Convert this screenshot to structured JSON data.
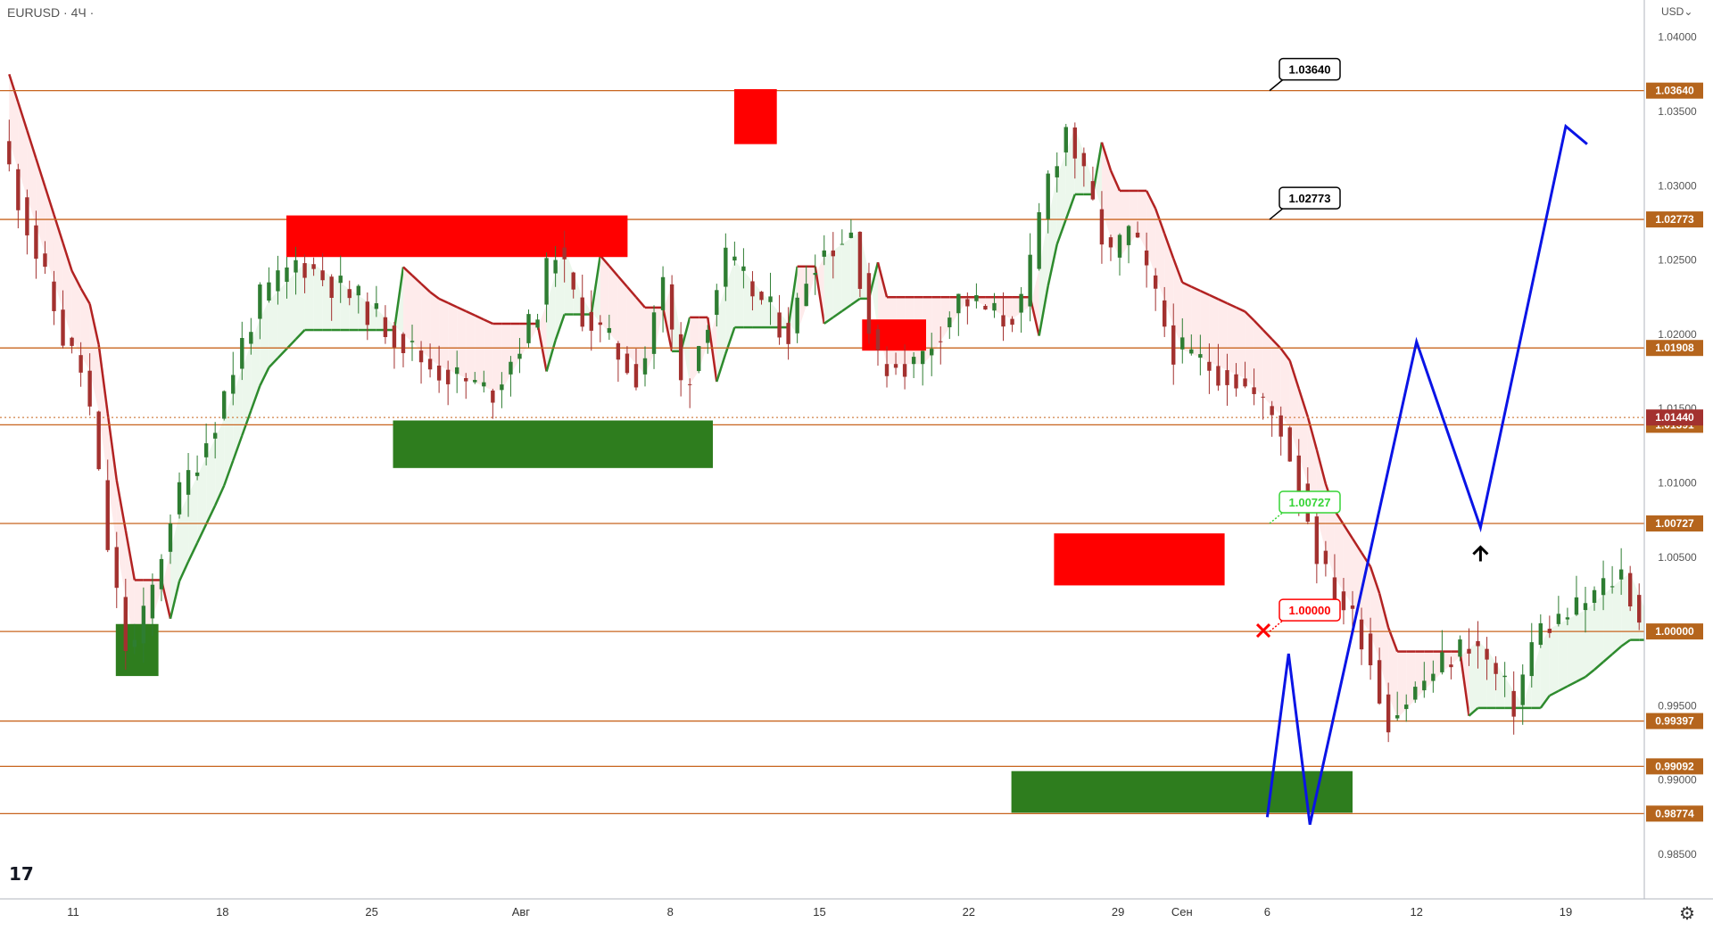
{
  "header": {
    "symbol": "EURUSD",
    "interval": "4Ч",
    "currency": "USD"
  },
  "colors": {
    "level_line": "#c8641e",
    "supply_zone": "#ff0000",
    "demand_zone": "#2e7d1e",
    "bull_candle": "#2e7d32",
    "bear_candle": "#a3312f",
    "trend_down": "#b22222",
    "trend_up": "#2e8b2e",
    "projection": "#0a14e6"
  },
  "chart_data": {
    "type": "candlestick",
    "symbol": "EURUSD",
    "timeframe": "4Ч",
    "ylim": [
      0.982,
      1.0425
    ],
    "x_ticks": [
      "11",
      "18",
      "25",
      "Авг",
      "8",
      "15",
      "22",
      "29",
      "Сен",
      "6",
      "12",
      "19"
    ],
    "y_ticks": [
      1.04,
      1.035,
      1.03,
      1.025,
      1.02,
      1.015,
      1.01,
      1.005,
      1.0,
      0.995,
      0.99,
      0.985
    ],
    "y_tick_labels": [
      "1.04000",
      "1.03500",
      "1.03000",
      "1.02500",
      "1.02000",
      "1.01500",
      "1.01000",
      "1.00500",
      "1.00000",
      "0.99500",
      "0.99000",
      "0.98500"
    ],
    "levels": [
      1.0364,
      1.02773,
      1.01908,
      1.01391,
      1.00727,
      1.0,
      0.99397,
      0.99092,
      0.98774
    ],
    "level_labels": [
      "1.03640",
      "1.02773",
      "1.01908",
      "1.01391",
      "1.00727",
      "1.00000",
      "0.99397",
      "0.99092",
      "0.98774"
    ],
    "last_price": 1.0144,
    "last_price_label": "1.01440",
    "targets": [
      {
        "label": "1.03640",
        "value": 1.0364,
        "style": "black"
      },
      {
        "label": "1.02773",
        "value": 1.02773,
        "style": "black"
      },
      {
        "label": "1.00727",
        "value": 1.00727,
        "style": "green"
      },
      {
        "label": "1.00000",
        "value": 1.0,
        "style": "red"
      }
    ],
    "projection_path": [
      {
        "date": "2022-09-05",
        "price": 0.9875
      },
      {
        "date": "2022-09-06",
        "price": 0.9985
      },
      {
        "date": "2022-09-07",
        "price": 0.987
      },
      {
        "date": "2022-09-12",
        "price": 1.0195
      },
      {
        "date": "2022-09-15",
        "price": 1.007
      },
      {
        "date": "2022-09-19",
        "price": 1.034
      },
      {
        "date": "2022-09-20",
        "price": 1.0328
      }
    ],
    "supply_zones": [
      {
        "from": "2022-07-21",
        "to": "2022-08-05",
        "low": 1.0252,
        "high": 1.028
      },
      {
        "from": "2022-08-11",
        "to": "2022-08-12",
        "low": 1.0328,
        "high": 1.0365
      },
      {
        "from": "2022-08-17",
        "to": "2022-08-19",
        "low": 1.0189,
        "high": 1.021
      },
      {
        "from": "2022-08-26",
        "to": "2022-09-02",
        "low": 1.0031,
        "high": 1.0066
      }
    ],
    "demand_zones": [
      {
        "from": "2022-07-13",
        "to": "2022-07-14",
        "low": 0.997,
        "high": 1.0005
      },
      {
        "from": "2022-07-26",
        "to": "2022-08-09",
        "low": 1.011,
        "high": 1.0142
      },
      {
        "from": "2022-08-24",
        "to": "2022-09-08",
        "low": 0.9878,
        "high": 0.9906
      }
    ]
  }
}
